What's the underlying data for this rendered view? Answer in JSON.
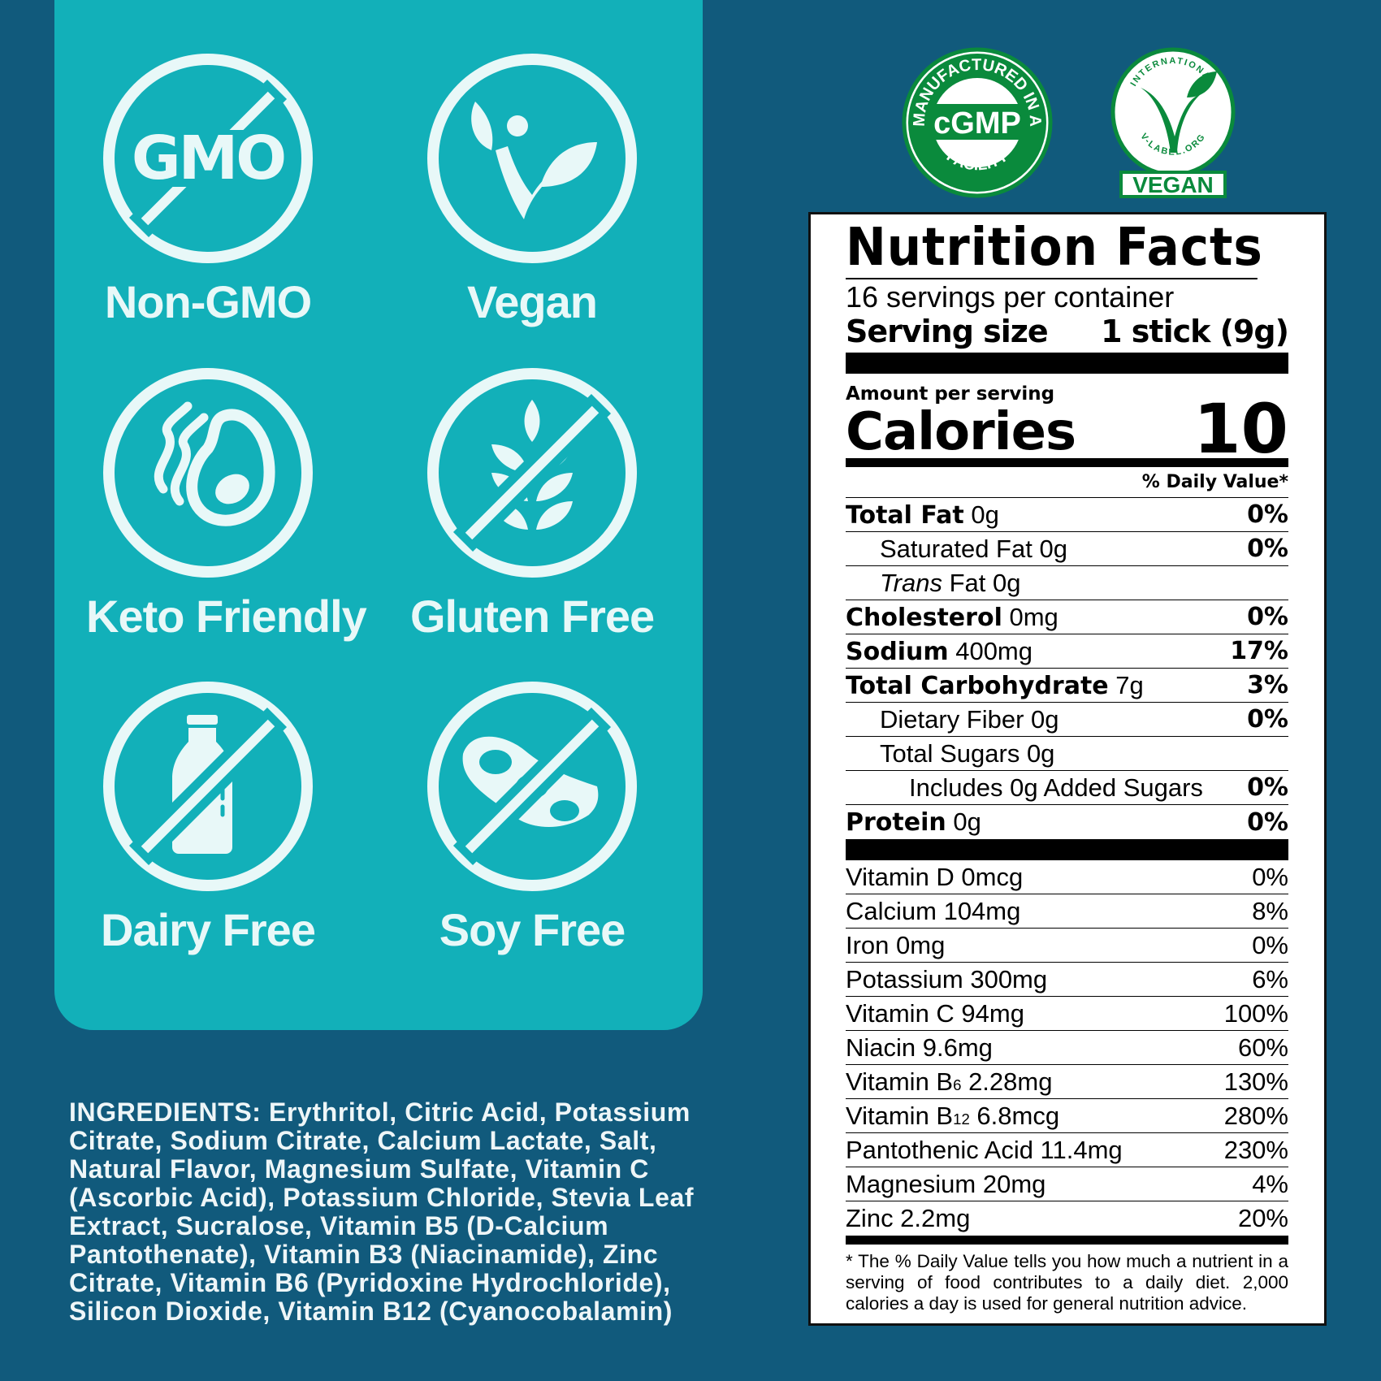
{
  "colors": {
    "background": "#115a7c",
    "panel": "#12b0b9",
    "icon": "#e8f8f8",
    "seal_green": "#0a8a3c"
  },
  "badges": [
    {
      "label": "Non-GMO",
      "icon": "no-gmo-icon",
      "glyph": "GMO"
    },
    {
      "label": "Vegan",
      "icon": "vegan-plant-icon"
    },
    {
      "label": "Keto Friendly",
      "icon": "avocado-icon"
    },
    {
      "label": "Gluten Free",
      "icon": "no-wheat-icon"
    },
    {
      "label": "Dairy Free",
      "icon": "no-milk-bottle-icon"
    },
    {
      "label": "Soy Free",
      "icon": "no-soybean-icon"
    }
  ],
  "seals": {
    "cgmp": {
      "top": "MANUFACTURED IN A",
      "center": "cGMP",
      "bottom": "FACILITY"
    },
    "vlabel": {
      "top": "INTERNATIONAL",
      "bottom": "V-LABEL.ORG",
      "banner": "VEGAN"
    }
  },
  "ingredients": {
    "heading": "INGREDIENTS:",
    "text": "Erythritol, Citric Acid, Potassium Citrate, Sodium Citrate, Calcium Lactate, Salt, Natural Flavor, Magnesium Sulfate, Vitamin C (Ascorbic Acid), Potassium Chloride, Stevia Leaf Extract, Sucralose, Vitamin B5 (D-Calcium Pantothenate), Vitamin B3 (Niacinamide), Zinc Citrate, Vitamin B6 (Pyridoxine Hydrochloride), Silicon Dioxide, Vitamin B12 (Cyanocobalamin)"
  },
  "nutrition": {
    "title": "Nutrition Facts",
    "servings": "16 servings per container",
    "serving_size_label": "Serving size",
    "serving_size_value": "1 stick (9g)",
    "amount_per_serving": "Amount per serving",
    "calories_label": "Calories",
    "calories_value": "10",
    "dv_header": "% Daily Value*",
    "macros": [
      {
        "name": "Total Fat",
        "amount": "0g",
        "dv": "0%",
        "bold": true,
        "indent": 0
      },
      {
        "name": "Saturated Fat",
        "amount": "0g",
        "dv": "0%",
        "bold": false,
        "indent": 1
      },
      {
        "name": "Trans",
        "name_rest": "Fat",
        "amount": "0g",
        "dv": "",
        "bold": false,
        "indent": 1,
        "italic": true
      },
      {
        "name": "Cholesterol",
        "amount": "0mg",
        "dv": "0%",
        "bold": true,
        "indent": 0
      },
      {
        "name": "Sodium",
        "amount": "400mg",
        "dv": "17%",
        "bold": true,
        "indent": 0
      },
      {
        "name": "Total Carbohydrate",
        "amount": "7g",
        "dv": "3%",
        "bold": true,
        "indent": 0
      },
      {
        "name": "Dietary Fiber",
        "amount": "0g",
        "dv": "0%",
        "bold": false,
        "indent": 1
      },
      {
        "name": "Total Sugars",
        "amount": "0g",
        "dv": "",
        "bold": false,
        "indent": 1
      },
      {
        "name": "Includes 0g Added Sugars",
        "amount": "",
        "dv": "0%",
        "bold": false,
        "indent": 2
      },
      {
        "name": "Protein",
        "amount": "0g",
        "dv": "0%",
        "bold": true,
        "indent": 0
      }
    ],
    "micros": [
      {
        "name": "Vitamin D",
        "amount": "0mcg",
        "dv": "0%"
      },
      {
        "name": "Calcium",
        "amount": "104mg",
        "dv": "8%"
      },
      {
        "name": "Iron",
        "amount": "0mg",
        "dv": "0%"
      },
      {
        "name": "Potassium",
        "amount": "300mg",
        "dv": "6%"
      },
      {
        "name": "Vitamin C",
        "amount": "94mg",
        "dv": "100%"
      },
      {
        "name": "Niacin",
        "amount": "9.6mg",
        "dv": "60%"
      },
      {
        "name": "Vitamin B",
        "sub": "6",
        "amount": "2.28mg",
        "dv": "130%"
      },
      {
        "name": "Vitamin B",
        "sub": "12",
        "amount": "6.8mcg",
        "dv": "280%"
      },
      {
        "name": "Pantothenic Acid",
        "amount": "11.4mg",
        "dv": "230%"
      },
      {
        "name": "Magnesium",
        "amount": "20mg",
        "dv": "4%"
      },
      {
        "name": "Zinc",
        "amount": "2.2mg",
        "dv": "20%"
      }
    ],
    "footnote": "* The % Daily Value tells you how much a nutrient in a serving of food contributes to a daily diet. 2,000 calories a day is used for general nutrition advice."
  }
}
